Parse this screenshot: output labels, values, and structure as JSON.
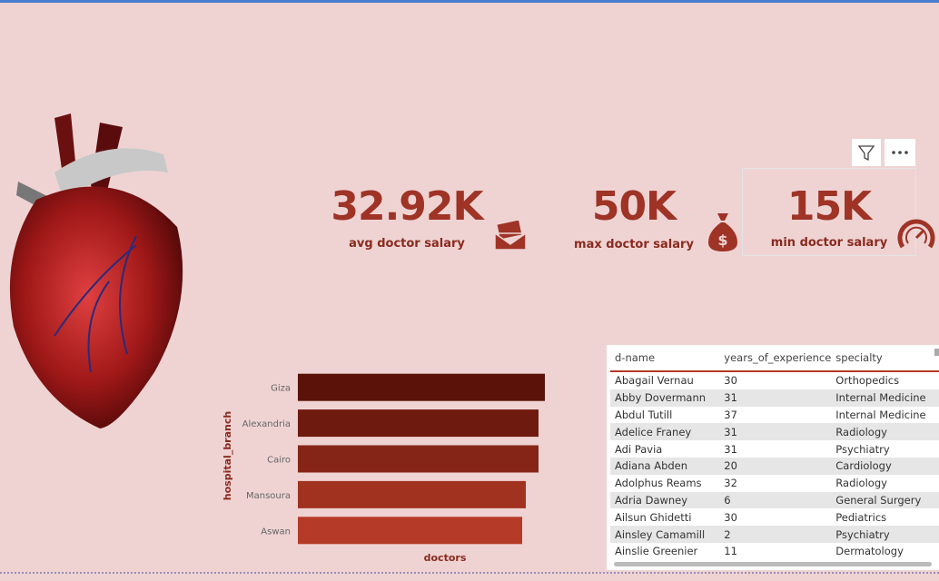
{
  "kpis": [
    {
      "value": "32.92K",
      "label": "avg doctor salary"
    },
    {
      "value": "50K",
      "label": "max doctor salary"
    },
    {
      "value": "15K",
      "label": "min doctor salary"
    }
  ],
  "chart_data": {
    "type": "bar",
    "orientation": "horizontal",
    "y_label": "hospital_branch",
    "x_label": "doctors",
    "categories": [
      "Giza",
      "Alexandria",
      "Cairo",
      "Mansoura",
      "Aswan"
    ],
    "values": [
      272,
      265,
      265,
      251,
      247
    ],
    "colors": [
      "#5a1209",
      "#6f1a0f",
      "#852517",
      "#a0321f",
      "#b53a27"
    ]
  },
  "table": {
    "columns": [
      "d-name",
      "years_of_experience",
      "specialty"
    ],
    "rows": [
      [
        "Abagail Vernau",
        "30",
        "Orthopedics"
      ],
      [
        "Abby Dovermann",
        "31",
        "Internal Medicine"
      ],
      [
        "Abdul Tutill",
        "37",
        "Internal Medicine"
      ],
      [
        "Adelice Franey",
        "31",
        "Radiology"
      ],
      [
        "Adi Pavia",
        "31",
        "Psychiatry"
      ],
      [
        "Adiana Abden",
        "20",
        "Cardiology"
      ],
      [
        "Adolphus Reams",
        "32",
        "Radiology"
      ],
      [
        "Adria Dawney",
        "6",
        "General Surgery"
      ],
      [
        "Ailsun Ghidetti",
        "30",
        "Pediatrics"
      ],
      [
        "Ainsley Camamill",
        "2",
        "Psychiatry"
      ],
      [
        "Ainslie Greenier",
        "11",
        "Dermatology"
      ]
    ]
  }
}
